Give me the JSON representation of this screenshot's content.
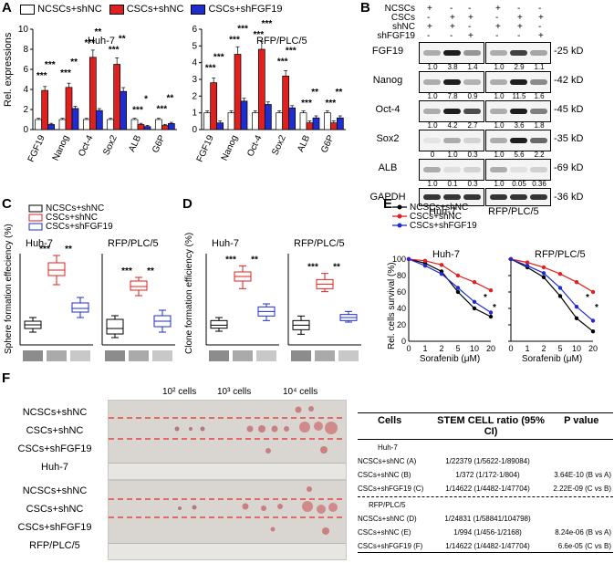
{
  "panel_labels": {
    "a": "A",
    "b": "B",
    "c": "C",
    "d": "D",
    "e": "E",
    "f": "F"
  },
  "colors": {
    "ncscs": "#ffffff",
    "cscs": "#e0201e",
    "shfgf19": "#1f2ccf",
    "axis": "#000000",
    "dash": "#e8282a"
  },
  "legend_a": [
    "NCSCs+shNC",
    "CSCs+shNC",
    "CSCs+shFGF19"
  ],
  "chart_data": [
    {
      "type": "bar",
      "id": "A1",
      "title": "Huh-7",
      "ylabel": "Rel. expressions",
      "categories": [
        "FGF19",
        "Nanog",
        "Oct-4",
        "Sox2",
        "ALB",
        "G6P"
      ],
      "ylim": [
        0,
        10
      ],
      "yticks": [
        "0",
        "2",
        "4",
        "6",
        "8",
        "10"
      ],
      "series": [
        {
          "name": "NCSCs+shNC",
          "values": [
            1.0,
            1.0,
            1.0,
            1.0,
            1.0,
            1.0
          ]
        },
        {
          "name": "CSCs+shNC",
          "values": [
            3.9,
            4.2,
            7.2,
            6.5,
            0.5,
            0.4
          ]
        },
        {
          "name": "CSCs+shFGF19",
          "values": [
            0.5,
            2.1,
            1.9,
            3.8,
            0.3,
            0.6
          ]
        }
      ],
      "significance": [
        [
          "***",
          "***"
        ],
        [
          "***",
          "**"
        ],
        [
          "***",
          "**"
        ],
        [
          "***",
          "**"
        ],
        [
          "***",
          "*"
        ],
        [
          "***",
          "**"
        ]
      ]
    },
    {
      "type": "bar",
      "id": "A2",
      "title": "RFP/PLC/5",
      "ylabel": "",
      "categories": [
        "FGF19",
        "Nanog",
        "Oct-4",
        "Sox2",
        "ALB",
        "G6P"
      ],
      "ylim": [
        0,
        6
      ],
      "yticks": [
        "0",
        "1",
        "2",
        "3",
        "4",
        "5",
        "6"
      ],
      "series": [
        {
          "name": "NCSCs+shNC",
          "values": [
            1.0,
            1.0,
            1.0,
            1.0,
            1.0,
            1.0
          ]
        },
        {
          "name": "CSCs+shNC",
          "values": [
            2.8,
            4.5,
            4.8,
            3.2,
            0.4,
            0.4
          ]
        },
        {
          "name": "CSCs+shFGF19",
          "values": [
            0.4,
            1.7,
            1.5,
            1.3,
            0.7,
            0.7
          ]
        }
      ],
      "significance": [
        [
          "***",
          "***"
        ],
        [
          "***",
          "***"
        ],
        [
          "***",
          "***"
        ],
        [
          "***",
          "***"
        ],
        [
          "***",
          "**"
        ],
        [
          "***",
          "**"
        ]
      ]
    },
    {
      "type": "box",
      "id": "C",
      "title": "Sphere formation effeciency (%)",
      "groups": [
        "NCSCs+shNC",
        "CSCs+shNC",
        "CSCs+shFGF19"
      ],
      "subtitles": [
        "Huh-7",
        "RFP/PLC/5"
      ],
      "ylim": [
        0,
        50
      ],
      "boxes": [
        [
          {
            "min": 7,
            "q1": 9,
            "med": 11,
            "q3": 13,
            "max": 15
          },
          {
            "min": 33,
            "q1": 38,
            "med": 41,
            "q3": 45,
            "max": 49
          },
          {
            "min": 15,
            "q1": 18,
            "med": 20,
            "q3": 23,
            "max": 26
          }
        ],
        [
          {
            "min": 4,
            "q1": 6,
            "med": 9,
            "q3": 14,
            "max": 16
          },
          {
            "min": 27,
            "q1": 30,
            "med": 32,
            "q3": 35,
            "max": 37
          },
          {
            "min": 7,
            "q1": 10,
            "med": 13,
            "q3": 16,
            "max": 19
          }
        ]
      ],
      "sig": [
        [
          "***",
          "**"
        ],
        [
          "***",
          "**"
        ]
      ]
    },
    {
      "type": "box",
      "id": "D",
      "title": "Clone formation efficiency (%)",
      "groups": [
        "NCSCs+shNC",
        "CSCs+shNC",
        "CSCs+shFGF19"
      ],
      "subtitles": [
        "Huh-7",
        "RFP/PLC/5"
      ],
      "ylim": [
        0,
        60
      ],
      "boxes": [
        [
          {
            "min": 9,
            "q1": 11,
            "med": 13,
            "q3": 16,
            "max": 18
          },
          {
            "min": 37,
            "q1": 42,
            "med": 45,
            "q3": 48,
            "max": 52
          },
          {
            "min": 16,
            "q1": 19,
            "med": 22,
            "q3": 25,
            "max": 27
          }
        ],
        [
          {
            "min": 7,
            "q1": 10,
            "med": 13,
            "q3": 16,
            "max": 19
          },
          {
            "min": 35,
            "q1": 37,
            "med": 40,
            "q3": 43,
            "max": 47
          },
          {
            "min": 15,
            "q1": 16,
            "med": 18,
            "q3": 20,
            "max": 22
          }
        ]
      ],
      "sig": [
        [
          "***",
          "**"
        ],
        [
          "***",
          "**"
        ]
      ]
    },
    {
      "type": "line",
      "id": "E",
      "ylabel": "Rel. cells survival (%)",
      "xlabel": "Sorafenib (μM)",
      "x": [
        "0",
        "1",
        "2",
        "5",
        "10",
        "20"
      ],
      "ylim": [
        0,
        100
      ],
      "yticks": [
        "0",
        "20",
        "40",
        "60",
        "80",
        "100"
      ],
      "subtitles": [
        "Huh-7",
        "RFP/PLC/5"
      ],
      "series": [
        {
          "name": "NCSCs+shNC",
          "color": "#000000",
          "values": [
            [
              100,
              95,
              85,
              60,
              40,
              30
            ],
            [
              100,
              90,
              78,
              55,
              28,
              12
            ]
          ]
        },
        {
          "name": "CSCs+shNC",
          "color": "#e0201e",
          "values": [
            [
              100,
              98,
              93,
              80,
              72,
              62
            ],
            [
              100,
              96,
              90,
              82,
              72,
              60
            ]
          ]
        },
        {
          "name": "CSCs+shFGF19",
          "color": "#1f2ccf",
          "values": [
            [
              100,
              92,
              82,
              65,
              48,
              35
            ],
            [
              100,
              92,
              83,
              65,
              42,
              25
            ]
          ]
        }
      ]
    }
  ],
  "blot": {
    "header_rows": [
      {
        "label": "NCSCs",
        "marks": [
          "+",
          "-",
          "-",
          "+",
          "-",
          "-"
        ]
      },
      {
        "label": "CSCs",
        "marks": [
          "-",
          "+",
          "+",
          "-",
          "+",
          "+"
        ]
      },
      {
        "label": "shNC",
        "marks": [
          "+",
          "+",
          "-",
          "+",
          "+",
          "-"
        ]
      },
      {
        "label": "shFGF19",
        "marks": [
          "-",
          "-",
          "+",
          "-",
          "-",
          "+"
        ]
      }
    ],
    "bands": [
      {
        "name": "FGF19",
        "kd": "25 kD",
        "left": [
          "1.0",
          "3.8",
          "1.4"
        ],
        "right": [
          "1.0",
          "2.9",
          "1.1"
        ]
      },
      {
        "name": "Nanog",
        "kd": "42 kD",
        "left": [
          "1.0",
          "7.8",
          "0.9"
        ],
        "right": [
          "1.0",
          "11.5",
          "1.6"
        ]
      },
      {
        "name": "Oct-4",
        "kd": "45 kD",
        "left": [
          "1.0",
          "4.2",
          "2.7"
        ],
        "right": [
          "1.0",
          "3.6",
          "1.8"
        ]
      },
      {
        "name": "Sox2",
        "kd": "35 kD",
        "left": [
          "0",
          "1.0",
          "0.3"
        ],
        "right": [
          "1.0",
          "5.6",
          "2.2"
        ]
      },
      {
        "name": "ALB",
        "kd": "69 kD",
        "left": [
          "1.0",
          "0.1",
          "0.3"
        ],
        "right": [
          "1.0",
          "0.05",
          "0.36"
        ]
      },
      {
        "name": "GAPDH",
        "kd": "36 kD",
        "left": [],
        "right": []
      }
    ],
    "cell_lines": [
      "Huh-7",
      "RFP/PLC/5"
    ]
  },
  "panel_f": {
    "col_headers": [
      "10² cells",
      "10³ cells",
      "10⁴ cells"
    ],
    "row_labels_top": [
      "NCSCs+shNC",
      "CSCs+shNC",
      "CSCs+shFGF19",
      "Huh-7"
    ],
    "row_labels_bottom": [
      "NCSCs+shNC",
      "CSCs+shNC",
      "CSCs+shFGF19",
      "RFP/PLC/5"
    ],
    "table_header": [
      "Cells",
      "STEM CELL ratio (95% CI)",
      "P value"
    ],
    "group1": "Huh-7",
    "rows1": [
      [
        "NCSCs+shNC (A)",
        "1/22379 (1/5622-1/89084)",
        ""
      ],
      [
        "CSCs+shNC (B)",
        "1/372 (1/172-1/804)",
        "3.64E-10 (B vs A)"
      ],
      [
        "CSCs+shFGF19 (C)",
        "1/14622 (1/4482-1/47704)",
        "2.22E-09 (C vs B)"
      ]
    ],
    "group2": "RFP/PLC/5",
    "rows2": [
      [
        "NCSCs+shNC (D)",
        "1/24831 (1/58841/104798)",
        ""
      ],
      [
        "CSCs+shNC (E)",
        "1/994 (1/456-1/2168)",
        "8.24e-06 (B vs A)"
      ],
      [
        "CSCs+shFGF19 (F)",
        "1/14622 (1/4482-1/47704)",
        "6.6e-05 (C vs B)"
      ]
    ]
  }
}
